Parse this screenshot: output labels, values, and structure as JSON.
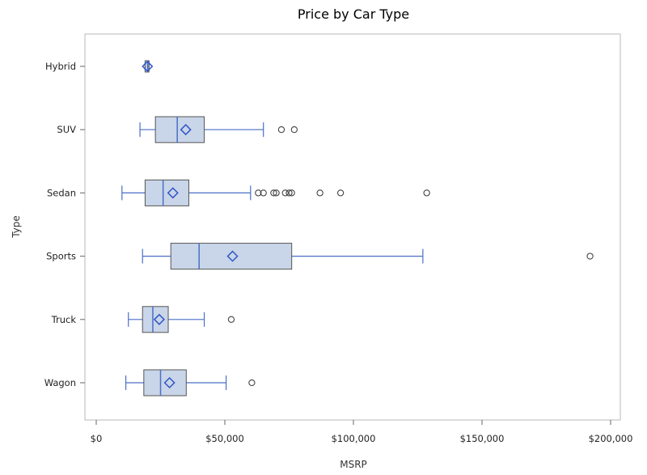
{
  "chart_data": {
    "type": "boxplot",
    "orientation": "horizontal",
    "title": "Price by Car Type",
    "xlabel": "MSRP",
    "ylabel": "Type",
    "xlim": [
      0,
      200000
    ],
    "xticks": [
      {
        "value": 0,
        "label": "$0"
      },
      {
        "value": 50000,
        "label": "$50,000"
      },
      {
        "value": 100000,
        "label": "$100,000"
      },
      {
        "value": 150000,
        "label": "$150,000"
      },
      {
        "value": 200000,
        "label": "$200,000"
      }
    ],
    "categories": [
      "Hybrid",
      "SUV",
      "Sedan",
      "Sports",
      "Truck",
      "Wagon"
    ],
    "boxes": [
      {
        "category": "Hybrid",
        "whisker_low": 19000,
        "q1": 19000,
        "median": 20000,
        "q3": 20500,
        "whisker_high": 20500,
        "mean": 19900,
        "outliers": []
      },
      {
        "category": "SUV",
        "whisker_low": 17000,
        "q1": 23000,
        "median": 31500,
        "q3": 42000,
        "whisker_high": 65000,
        "mean": 34800,
        "outliers": [
          72000,
          77000
        ]
      },
      {
        "category": "Sedan",
        "whisker_low": 10000,
        "q1": 19000,
        "median": 26000,
        "q3": 36000,
        "whisker_high": 60000,
        "mean": 29800,
        "outliers": [
          63000,
          65000,
          69000,
          70000,
          73500,
          75000,
          76000,
          87000,
          95000,
          128500
        ]
      },
      {
        "category": "Sports",
        "whisker_low": 18000,
        "q1": 29000,
        "median": 40000,
        "q3": 76000,
        "whisker_high": 127000,
        "mean": 53000,
        "outliers": [
          192000
        ]
      },
      {
        "category": "Truck",
        "whisker_low": 12500,
        "q1": 18000,
        "median": 22000,
        "q3": 28000,
        "whisker_high": 42000,
        "mean": 24500,
        "outliers": [
          52500
        ]
      },
      {
        "category": "Wagon",
        "whisker_low": 11500,
        "q1": 18500,
        "median": 25000,
        "q3": 35000,
        "whisker_high": 50500,
        "mean": 28500,
        "outliers": [
          60500
        ]
      }
    ],
    "colors": {
      "box_fill": "#c9d5e8",
      "box_stroke": "#555555",
      "whisker": "#4a6fc7",
      "median": "#4a6fc7",
      "mean": "#2f55c8",
      "outlier": "#444444",
      "frame": "#b8b8b8"
    }
  }
}
